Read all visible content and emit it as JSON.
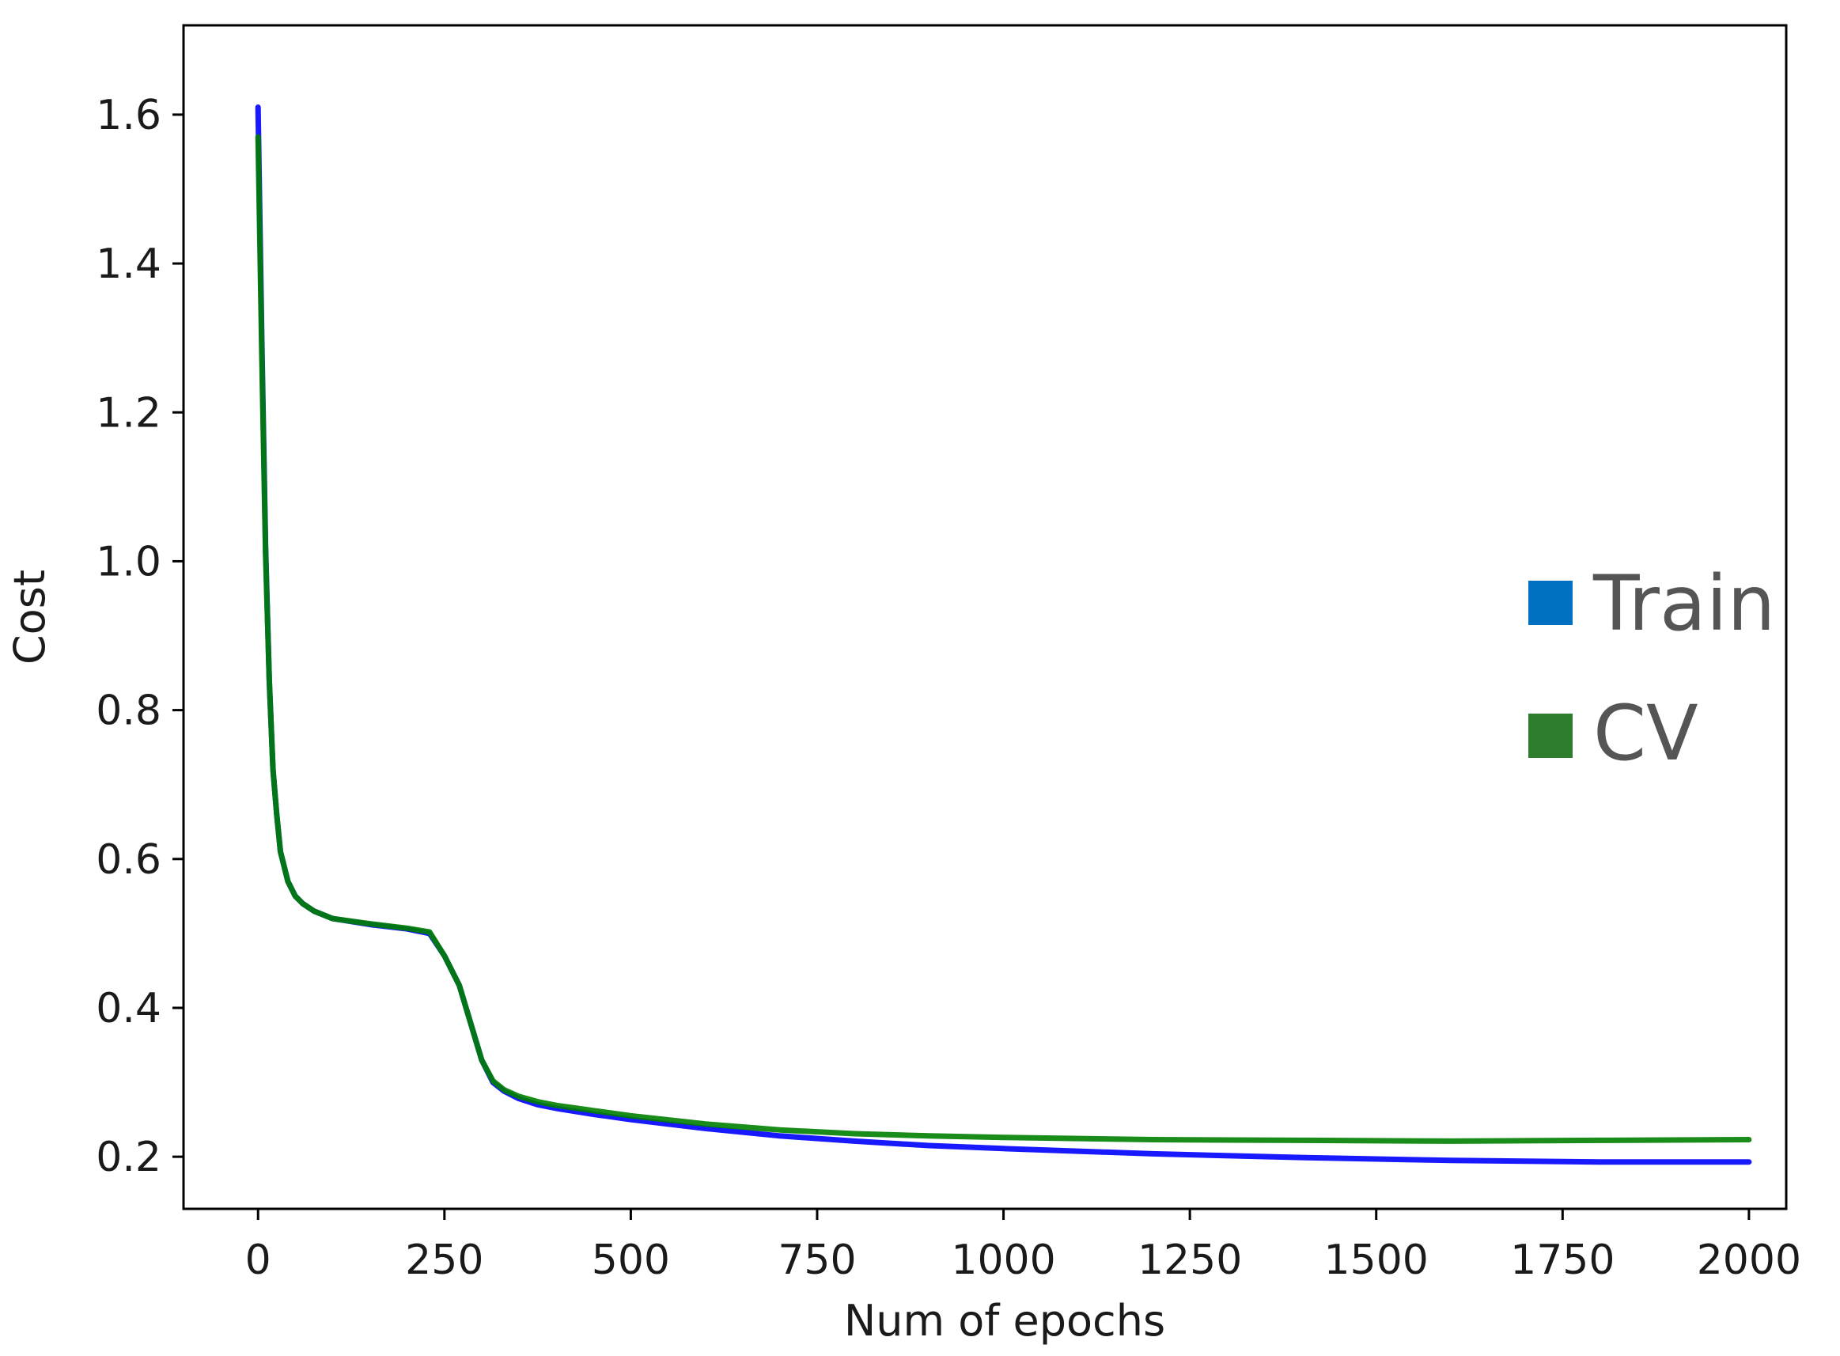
{
  "chart_data": {
    "type": "line",
    "title": "",
    "xlabel": "Num of epochs",
    "ylabel": "Cost",
    "xlim": [
      -100,
      2050
    ],
    "ylim": [
      0.13,
      1.72
    ],
    "xticks": [
      0,
      250,
      500,
      750,
      1000,
      1250,
      1500,
      1750,
      2000
    ],
    "xtick_labels": [
      "0",
      "250",
      "500",
      "750",
      "1000",
      "1250",
      "1500",
      "1750",
      "2000"
    ],
    "yticks": [
      0.2,
      0.4,
      0.6,
      0.8,
      1.0,
      1.2,
      1.4,
      1.6
    ],
    "ytick_labels": [
      "0.2",
      "0.4",
      "0.6",
      "0.8",
      "1.0",
      "1.2",
      "1.4",
      "1.6"
    ],
    "grid": false,
    "legend_position": "right",
    "series": [
      {
        "name": "Train",
        "color": "#0000ff",
        "legend_color": "#0070c0",
        "x": [
          0,
          5,
          10,
          15,
          20,
          25,
          30,
          40,
          50,
          60,
          75,
          100,
          150,
          200,
          230,
          250,
          270,
          285,
          300,
          315,
          330,
          350,
          375,
          400,
          450,
          500,
          600,
          700,
          800,
          900,
          1000,
          1200,
          1400,
          1600,
          1800,
          2000
        ],
        "y": [
          1.61,
          1.3,
          1.02,
          0.84,
          0.72,
          0.66,
          0.61,
          0.57,
          0.55,
          0.54,
          0.53,
          0.52,
          0.512,
          0.506,
          0.5,
          0.47,
          0.43,
          0.38,
          0.33,
          0.3,
          0.288,
          0.278,
          0.27,
          0.265,
          0.257,
          0.25,
          0.238,
          0.228,
          0.221,
          0.215,
          0.211,
          0.204,
          0.199,
          0.195,
          0.193,
          0.193
        ]
      },
      {
        "name": "CV",
        "color": "#008000",
        "legend_color": "#2e7d2e",
        "x": [
          0,
          5,
          10,
          15,
          20,
          25,
          30,
          40,
          50,
          60,
          75,
          100,
          150,
          200,
          230,
          250,
          270,
          285,
          300,
          315,
          330,
          350,
          375,
          400,
          450,
          500,
          600,
          700,
          800,
          900,
          1000,
          1200,
          1400,
          1600,
          1800,
          2000
        ],
        "y": [
          1.57,
          1.28,
          1.01,
          0.84,
          0.72,
          0.66,
          0.61,
          0.57,
          0.55,
          0.54,
          0.53,
          0.52,
          0.513,
          0.507,
          0.502,
          0.47,
          0.43,
          0.38,
          0.33,
          0.302,
          0.29,
          0.281,
          0.274,
          0.269,
          0.262,
          0.255,
          0.244,
          0.236,
          0.231,
          0.228,
          0.226,
          0.223,
          0.222,
          0.221,
          0.222,
          0.223
        ]
      }
    ]
  }
}
